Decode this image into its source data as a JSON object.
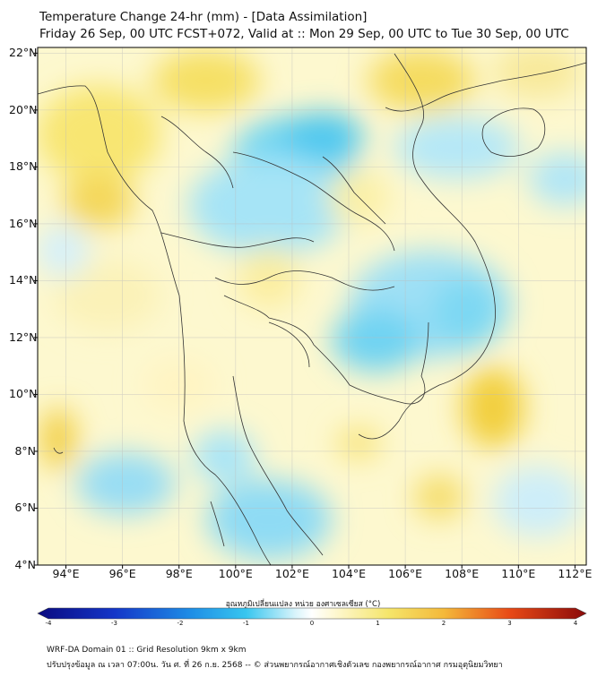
{
  "title_line1": "Temperature Change 24-hr (mm) - [Data Assimilation]",
  "title_line2": "Friday 26 Sep, 00 UTC FCST+072, Valid at :: Mon 29 Sep, 00 UTC to Tue 30 Sep, 00 UTC",
  "map": {
    "lat_labels": [
      "22°N",
      "20°N",
      "18°N",
      "16°N",
      "14°N",
      "12°N",
      "10°N",
      "8°N",
      "6°N",
      "4°N"
    ],
    "lon_labels": [
      "94°E",
      "96°E",
      "98°E",
      "100°E",
      "102°E",
      "104°E",
      "106°E",
      "108°E",
      "110°E",
      "112°E"
    ],
    "lat_range": [
      4,
      22.2
    ],
    "lon_range": [
      93,
      112.4
    ]
  },
  "colorbar": {
    "title": "อุณหภูมิเปลี่ยนแปลง หน่วย องศาเซลเซียส (°C)",
    "tick_labels": [
      "-4",
      "-3",
      "-2",
      "-1",
      "0",
      "1",
      "2",
      "3",
      "4"
    ],
    "range": [
      -4,
      4
    ],
    "colors": {
      "cold_extreme": "#0a0a80",
      "cold": "#1e6fe0",
      "cool": "#38c6ef",
      "neutral": "#ffffff",
      "warm": "#f5e56a",
      "hot": "#f08a20",
      "hot_extreme": "#8b0a0a"
    }
  },
  "footer": {
    "line1": "WRF-DA Domain 01 :: Grid Resolution 9km x 9km",
    "line2": "ปรับปรุงข้อมูล ณ เวลา 07:00น. วัน ศ. ที่ 26 ก.ย. 2568 -- © ส่วนพยากรณ์อากาศเชิงตัวเลข กองพยากรณ์อากาศ กรมอุตุนิยมวิทยา"
  }
}
